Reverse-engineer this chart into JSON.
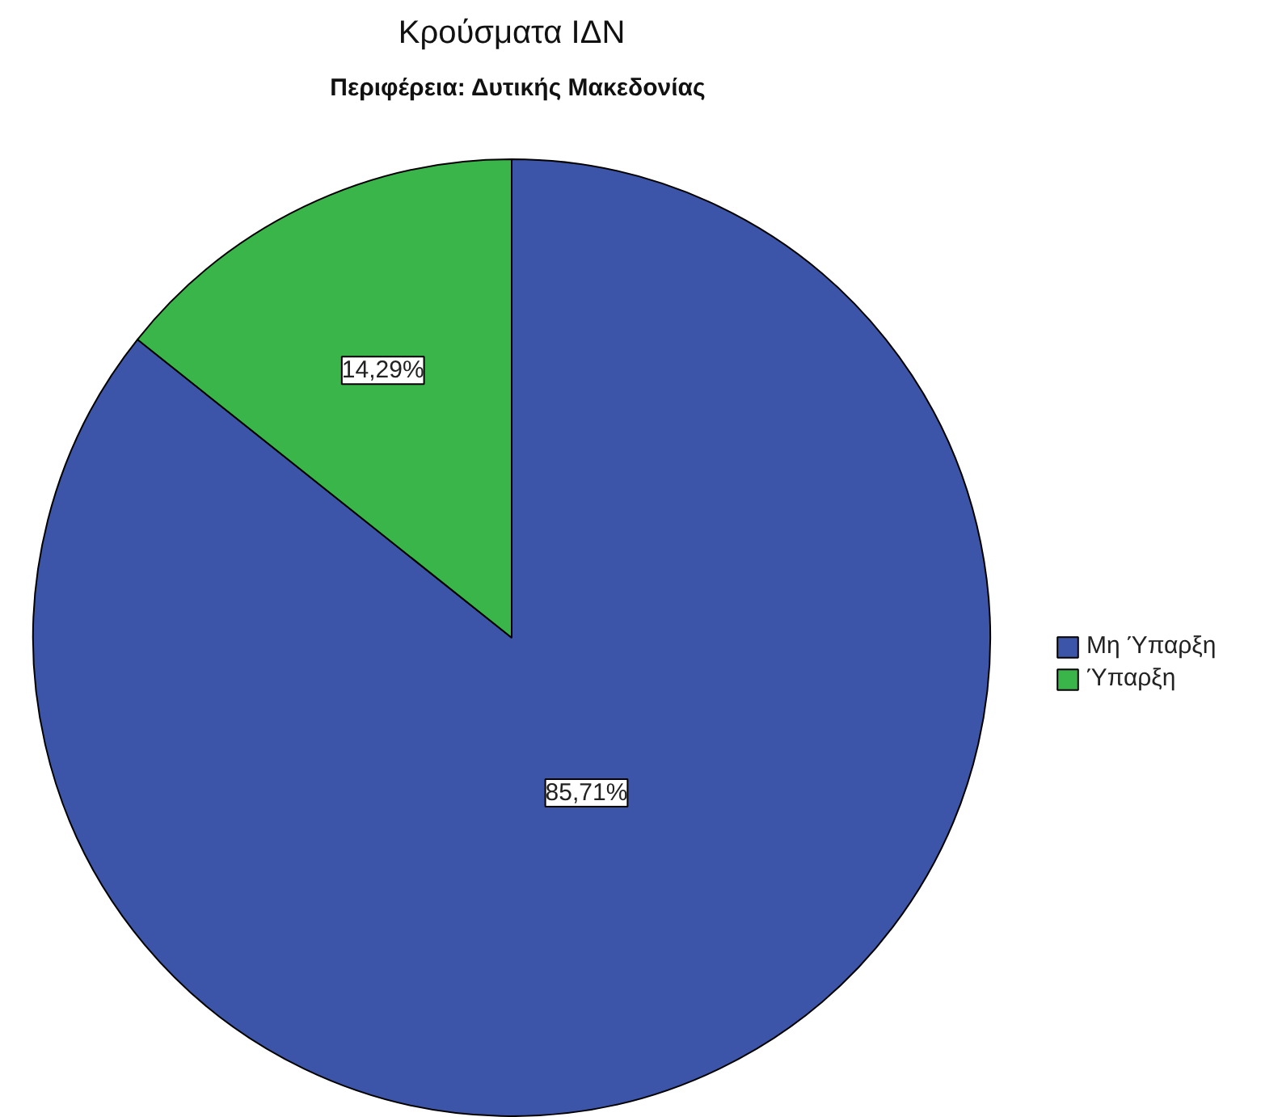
{
  "chart_data": {
    "type": "pie",
    "title": "Κρούσματα ΙΔΝ",
    "subtitle": "Περιφέρεια: Δυτικής Μακεδονίας",
    "categories": [
      "Μη Ύπαρξη",
      "Ύπαρξη"
    ],
    "values": [
      85.71,
      14.29
    ],
    "colors": [
      "#3d55a8",
      "#3ab54a"
    ],
    "value_labels": [
      "85,71%",
      "14,29%"
    ],
    "legend": "right"
  }
}
